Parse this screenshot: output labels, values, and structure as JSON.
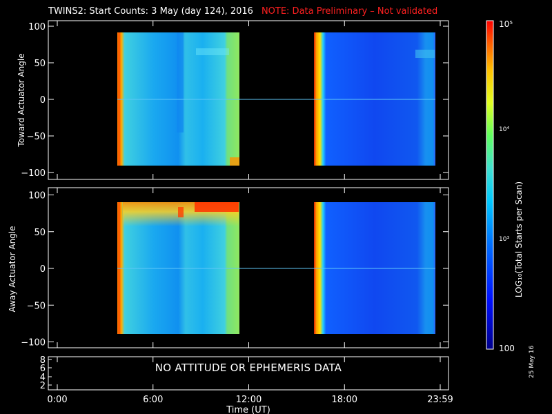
{
  "header": {
    "title": "TWINS2: Start Counts:  3 May (day 124), 2016",
    "note": "NOTE: Data Preliminary – Not validated"
  },
  "panels": {
    "top_ylabel": "Toward Actuator Angle",
    "bottom_ylabel": "Away Actuator Angle",
    "yticks": [
      "100",
      "50",
      "0",
      "−50",
      "−100"
    ]
  },
  "attitude_panel": {
    "message": "NO ATTITUDE OR EPHEMERIS DATA",
    "yticks": [
      "8",
      "6",
      "4",
      "2"
    ]
  },
  "x_axis": {
    "label": "Time (UT)",
    "ticks": [
      "0:00",
      "6:00",
      "12:00",
      "18:00",
      "23:59"
    ]
  },
  "colorbar": {
    "label": "LOG₁₀(Total Starts per Scan)",
    "ticks": [
      "10⁵",
      "10⁴",
      "10³",
      "100"
    ]
  },
  "footer": {
    "date": "25 May 16"
  },
  "chart_data": [
    {
      "type": "heatmap",
      "title": "TWINS2: Start Counts:  3 May (day 124), 2016",
      "ylabel": "Toward Actuator Angle",
      "xlabel": "Time (UT)",
      "xlim_hours": [
        0,
        24
      ],
      "ylim": [
        -100,
        100
      ],
      "colorscale": "log10 counts, 100 (blue) to 100000 (red)",
      "data_intervals_hours": [
        [
          4.0,
          11.75
        ],
        [
          16.2,
          23.8
        ]
      ],
      "data_angle_range": [
        -88,
        90
      ],
      "typical_level": "~1000 starts per scan",
      "features": [
        "bright red/orange edge at each data start (~4.0 h and ~16.2 h)",
        "green/yellow band near 11.2-11.7 h"
      ]
    },
    {
      "type": "heatmap",
      "ylabel": "Away Actuator Angle",
      "xlabel": "Time (UT)",
      "xlim_hours": [
        0,
        24
      ],
      "ylim": [
        -100,
        100
      ],
      "colorscale": "log10 counts, 100 (blue) to 100000 (red)",
      "data_intervals_hours": [
        [
          4.0,
          11.75
        ],
        [
          16.2,
          23.8
        ]
      ],
      "data_angle_range": [
        -88,
        90
      ],
      "features": [
        "yellow/red high-count band near +70 to +90 deg between 4 h and 12 h",
        "red blocks near +85 deg around 8.5-10.5 h"
      ]
    }
  ]
}
